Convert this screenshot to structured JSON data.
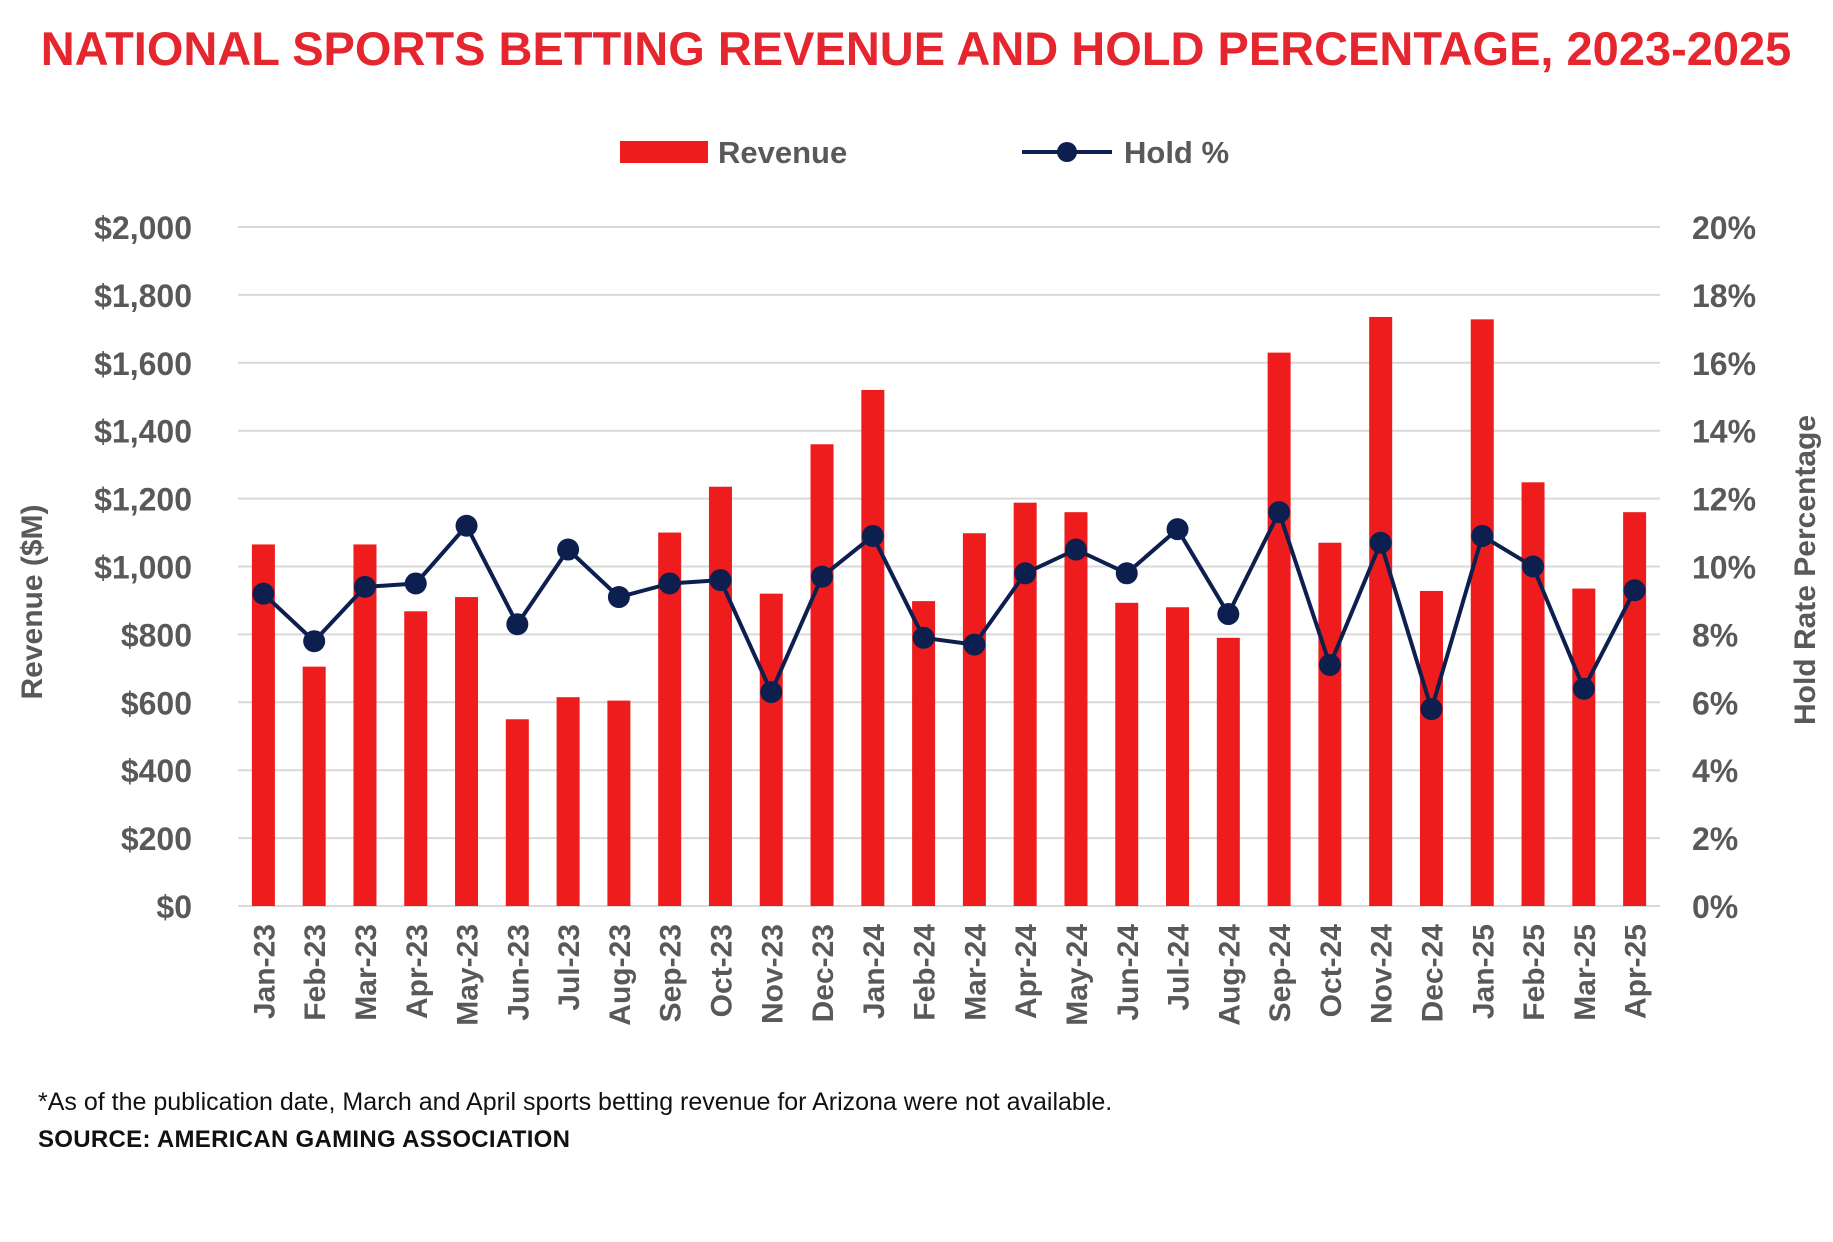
{
  "chart_data": {
    "type": "bar+line",
    "title": "NATIONAL SPORTS BETTING REVENUE AND HOLD PERCENTAGE, 2023-2025",
    "categories": [
      "Jan-23",
      "Feb-23",
      "Mar-23",
      "Apr-23",
      "May-23",
      "Jun-23",
      "Jul-23",
      "Aug-23",
      "Sep-23",
      "Oct-23",
      "Nov-23",
      "Dec-23",
      "Jan-24",
      "Feb-24",
      "Mar-24",
      "Apr-24",
      "May-24",
      "Jun-24",
      "Jul-24",
      "Aug-24",
      "Sep-24",
      "Oct-24",
      "Nov-24",
      "Dec-24",
      "Jan-25",
      "Feb-25",
      "Mar-25",
      "Apr-25"
    ],
    "series": [
      {
        "name": "Revenue",
        "type": "bar",
        "axis": "left",
        "color": "#ee1c1c",
        "values": [
          1065,
          705,
          1065,
          868,
          910,
          550,
          615,
          605,
          1100,
          1235,
          920,
          1360,
          1520,
          898,
          1098,
          1188,
          1160,
          893,
          880,
          790,
          1630,
          1070,
          1735,
          928,
          1728,
          1248,
          935,
          1160
        ]
      },
      {
        "name": "Hold %",
        "type": "line",
        "axis": "right",
        "color": "#0d1f4f",
        "values": [
          9.2,
          7.8,
          9.4,
          9.5,
          11.2,
          8.3,
          10.5,
          9.1,
          9.5,
          9.6,
          6.3,
          9.7,
          10.9,
          7.9,
          7.7,
          9.8,
          10.5,
          9.8,
          11.1,
          8.6,
          11.6,
          7.1,
          10.7,
          5.8,
          10.9,
          10.0,
          6.4,
          9.3
        ]
      }
    ],
    "ylabel": "Revenue ($M)",
    "ylabel_right": "Hold Rate Percentage",
    "ylim": [
      0,
      2000
    ],
    "ylim_right": [
      0,
      20
    ],
    "yticks": [
      "$0",
      "$200",
      "$400",
      "$600",
      "$800",
      "$1,000",
      "$1,200",
      "$1,400",
      "$1,600",
      "$1,800",
      "$2,000"
    ],
    "yticks_right": [
      "0%",
      "2%",
      "4%",
      "6%",
      "8%",
      "10%",
      "12%",
      "14%",
      "16%",
      "18%",
      "20%"
    ],
    "grid": true,
    "legend_position": "top-center"
  },
  "footnote": "*As of the publication date, March and April sports betting revenue for Arizona were not available.",
  "source": "SOURCE: AMERICAN GAMING ASSOCIATION",
  "colors": {
    "title": "#e5262f",
    "bar": "#ee1c1c",
    "line": "#0d1f4f",
    "axis_text": "#595959",
    "grid": "#d9d9d9"
  }
}
